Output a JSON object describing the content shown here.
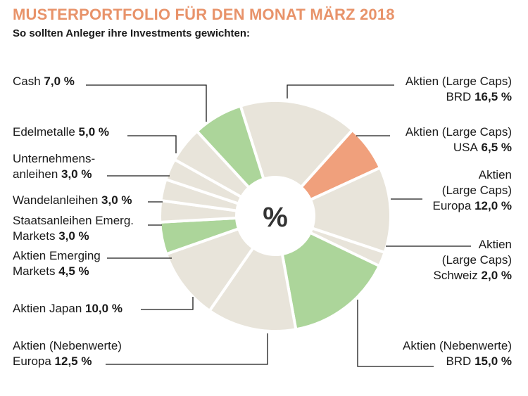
{
  "title": "MUSTERPORTFOLIO FÜR DEN MONAT MÄRZ 2018",
  "subtitle": "So sollten Anleger ihre Investments gewichten:",
  "center_label": "%",
  "colors": {
    "title": "#e8936a",
    "neutral": "#e8e4da",
    "green": "#acd59a",
    "orange": "#f0a07c",
    "leader": "#1a1a1a"
  },
  "chart_data": {
    "type": "pie",
    "title": "MUSTERPORTFOLIO FÜR DEN MONAT MÄRZ 2018",
    "subtitle": "So sollten Anleger ihre Investments gewichten:",
    "unit": "%",
    "slices": [
      {
        "label_lines": [
          "Aktien (Large Caps)",
          "BRD"
        ],
        "value": 16.5,
        "value_text": "16,5 %",
        "color": "neutral"
      },
      {
        "label_lines": [
          "Aktien (Large Caps)",
          "USA"
        ],
        "value": 6.5,
        "value_text": "6,5 %",
        "color": "orange"
      },
      {
        "label_lines": [
          "Aktien",
          "(Large Caps)",
          "Europa"
        ],
        "value": 12.0,
        "value_text": "12,0 %",
        "color": "neutral"
      },
      {
        "label_lines": [
          "Aktien",
          "(Large Caps)",
          "Schweiz"
        ],
        "value": 2.0,
        "value_text": "2,0 %",
        "color": "neutral"
      },
      {
        "label_lines": [
          "Aktien (Nebenwerte)",
          "BRD"
        ],
        "value": 15.0,
        "value_text": "15,0 %",
        "color": "green"
      },
      {
        "label_lines": [
          "Aktien (Nebenwerte)",
          "Europa"
        ],
        "value": 12.5,
        "value_text": "12,5 %",
        "color": "neutral"
      },
      {
        "label_lines": [
          "Aktien Japan"
        ],
        "value": 10.0,
        "value_text": "10,0 %",
        "color": "neutral"
      },
      {
        "label_lines": [
          "Aktien Emerging",
          "Markets"
        ],
        "value": 4.5,
        "value_text": "4,5 %",
        "color": "green"
      },
      {
        "label_lines": [
          "Staatsanleihen Emerg.",
          "Markets"
        ],
        "value": 3.0,
        "value_text": "3,0 %",
        "color": "neutral"
      },
      {
        "label_lines": [
          "Wandelanleihen"
        ],
        "value": 3.0,
        "value_text": "3,0 %",
        "color": "neutral"
      },
      {
        "label_lines": [
          "Unternehmens-",
          "anleihen"
        ],
        "value": 3.0,
        "value_text": "3,0 %",
        "color": "neutral"
      },
      {
        "label_lines": [
          "Edelmetalle"
        ],
        "value": 5.0,
        "value_text": "5,0 %",
        "color": "neutral"
      },
      {
        "label_lines": [
          "Cash"
        ],
        "value": 7.0,
        "value_text": "7,0 %",
        "color": "green"
      }
    ]
  }
}
